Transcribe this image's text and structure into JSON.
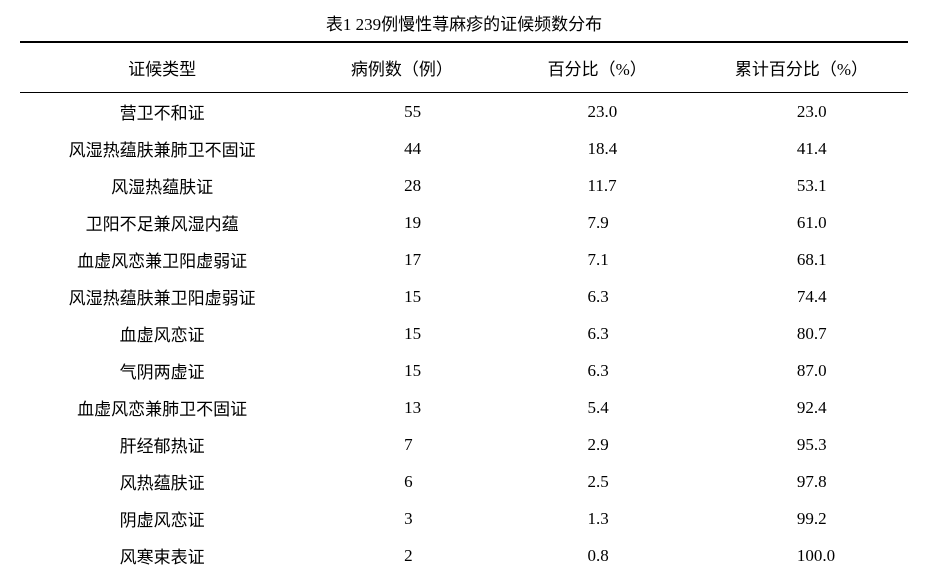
{
  "table": {
    "title": "表1  239例慢性荨麻疹的证候频数分布",
    "columns": [
      "证候类型",
      "病例数（例）",
      "百分比（%）",
      "累计百分比（%）"
    ],
    "rows": [
      {
        "type": "营卫不和证",
        "count": "55",
        "pct": "23.0",
        "cumpct": "23.0"
      },
      {
        "type": "风湿热蕴肤兼肺卫不固证",
        "count": "44",
        "pct": "18.4",
        "cumpct": "41.4"
      },
      {
        "type": "风湿热蕴肤证",
        "count": "28",
        "pct": "11.7",
        "cumpct": "53.1"
      },
      {
        "type": "卫阳不足兼风湿内蕴",
        "count": "19",
        "pct": "7.9",
        "cumpct": "61.0"
      },
      {
        "type": "血虚风恋兼卫阳虚弱证",
        "count": "17",
        "pct": "7.1",
        "cumpct": "68.1"
      },
      {
        "type": "风湿热蕴肤兼卫阳虚弱证",
        "count": "15",
        "pct": "6.3",
        "cumpct": "74.4"
      },
      {
        "type": "血虚风恋证",
        "count": "15",
        "pct": "6.3",
        "cumpct": "80.7"
      },
      {
        "type": "气阴两虚证",
        "count": "15",
        "pct": "6.3",
        "cumpct": "87.0"
      },
      {
        "type": "血虚风恋兼肺卫不固证",
        "count": "13",
        "pct": "5.4",
        "cumpct": "92.4"
      },
      {
        "type": "肝经郁热证",
        "count": "7",
        "pct": "2.9",
        "cumpct": "95.3"
      },
      {
        "type": "风热蕴肤证",
        "count": "6",
        "pct": "2.5",
        "cumpct": "97.8"
      },
      {
        "type": "阴虚风恋证",
        "count": "3",
        "pct": "1.3",
        "cumpct": "99.2"
      },
      {
        "type": "风寒束表证",
        "count": "2",
        "pct": "0.8",
        "cumpct": "100.0"
      }
    ],
    "styling": {
      "font_family": "SimSun",
      "title_fontsize": 17,
      "cell_fontsize": 17,
      "text_color": "#000000",
      "background_color": "#ffffff",
      "border_color": "#000000",
      "top_border_width": 2,
      "header_bottom_border_width": 1.5,
      "column_widths_pct": [
        32,
        22,
        22,
        24
      ],
      "row_padding_vertical": 6,
      "header_padding_vertical": 12
    }
  }
}
